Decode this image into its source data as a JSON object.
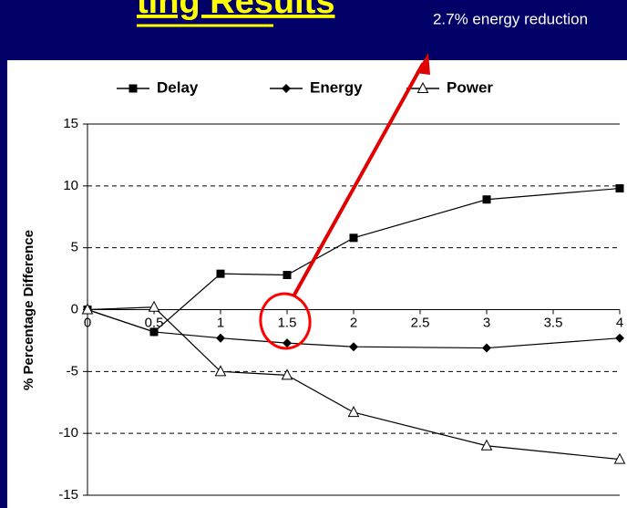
{
  "slide_title": "ting Results",
  "annotation": "2.7% energy reduction",
  "chart_data": {
    "type": "line",
    "ylabel": "% Percentage Difference",
    "x": [
      0,
      0.5,
      1,
      1.5,
      2,
      3,
      4
    ],
    "series": [
      {
        "name": "Delay",
        "color": "#000000",
        "marker": "square",
        "values": [
          0,
          -1.8,
          2.9,
          2.8,
          5.8,
          8.9,
          9.8
        ]
      },
      {
        "name": "Energy",
        "color": "#000000",
        "marker": "diamond",
        "values": [
          0,
          -1.8,
          -2.3,
          -2.7,
          -3.0,
          -3.1,
          -2.3
        ]
      },
      {
        "name": "Power",
        "color": "#000000",
        "marker": "triangle",
        "values": [
          0,
          0.2,
          -5.0,
          -5.3,
          -8.3,
          -11.0,
          -12.1
        ]
      }
    ],
    "xlim": [
      0,
      4
    ],
    "xticks": [
      0,
      0.5,
      1,
      1.5,
      2,
      2.5,
      3,
      3.5,
      4
    ],
    "ylim": [
      -15,
      15
    ],
    "yticks": [
      -15,
      -10,
      -5,
      0,
      5,
      10,
      15
    ],
    "grid": true,
    "legend": "top"
  }
}
